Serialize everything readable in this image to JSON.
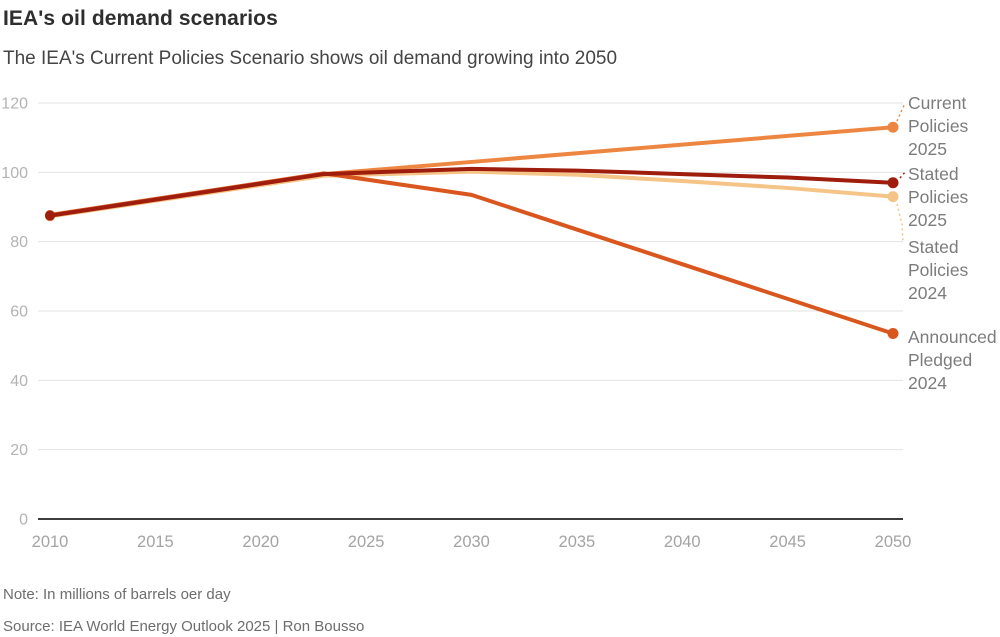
{
  "header": {
    "title": "IEA's oil demand scenarios",
    "subtitle": "The IEA's Current Policies Scenario shows oil demand growing into 2050"
  },
  "footer": {
    "note": "Note: In millions of barrels oer day",
    "source": "Source: IEA World Energy Outlook 2025 | Ron Bousso"
  },
  "chart_data": {
    "type": "line",
    "title": "IEA's oil demand scenarios",
    "subtitle": "The IEA's Current Policies Scenario shows oil demand growing into 2050",
    "xlabel": "",
    "ylabel": "",
    "xlim": [
      2010,
      2050
    ],
    "ylim": [
      0,
      120
    ],
    "xticks": [
      2010,
      2015,
      2020,
      2025,
      2030,
      2035,
      2040,
      2045,
      2050
    ],
    "yticks": [
      0,
      20,
      40,
      60,
      80,
      100,
      120
    ],
    "grid": "horizontal",
    "legend_position": "right-edge-labels",
    "series": [
      {
        "id": "current-policies-2025",
        "name": "Current Policies 2025",
        "label_lines": "Current\nPolicies\n2025",
        "color": "#ED8640",
        "points": [
          [
            2010,
            87.5
          ],
          [
            2023,
            99.5
          ],
          [
            2030,
            103
          ],
          [
            2040,
            108
          ],
          [
            2050,
            113
          ]
        ]
      },
      {
        "id": "stated-policies-2025",
        "name": "Stated Policies 2025",
        "label_lines": "Stated\nPolicies\n2025",
        "color": "#9E1D0C",
        "points": [
          [
            2010,
            87.5
          ],
          [
            2023,
            99.5
          ],
          [
            2030,
            101
          ],
          [
            2035,
            100.5
          ],
          [
            2040,
            99.5
          ],
          [
            2045,
            98.5
          ],
          [
            2050,
            97
          ]
        ]
      },
      {
        "id": "stated-policies-2024",
        "name": "Stated Policies 2024",
        "label_lines": "Stated\nPolicies\n2024",
        "color": "#F5C487",
        "points": [
          [
            2010,
            87.3
          ],
          [
            2023,
            99
          ],
          [
            2030,
            100.2
          ],
          [
            2035,
            99.3
          ],
          [
            2040,
            97.5
          ],
          [
            2045,
            95.5
          ],
          [
            2050,
            93
          ]
        ]
      },
      {
        "id": "announced-pledged-2024",
        "name": "Announced Pledged 2024",
        "label_lines": "Announced\nPledged\n2024",
        "color": "#D9571E",
        "points": [
          [
            2010,
            87.7
          ],
          [
            2023,
            99.7
          ],
          [
            2030,
            93.5
          ],
          [
            2040,
            73.5
          ],
          [
            2050,
            53.5
          ]
        ]
      }
    ]
  }
}
